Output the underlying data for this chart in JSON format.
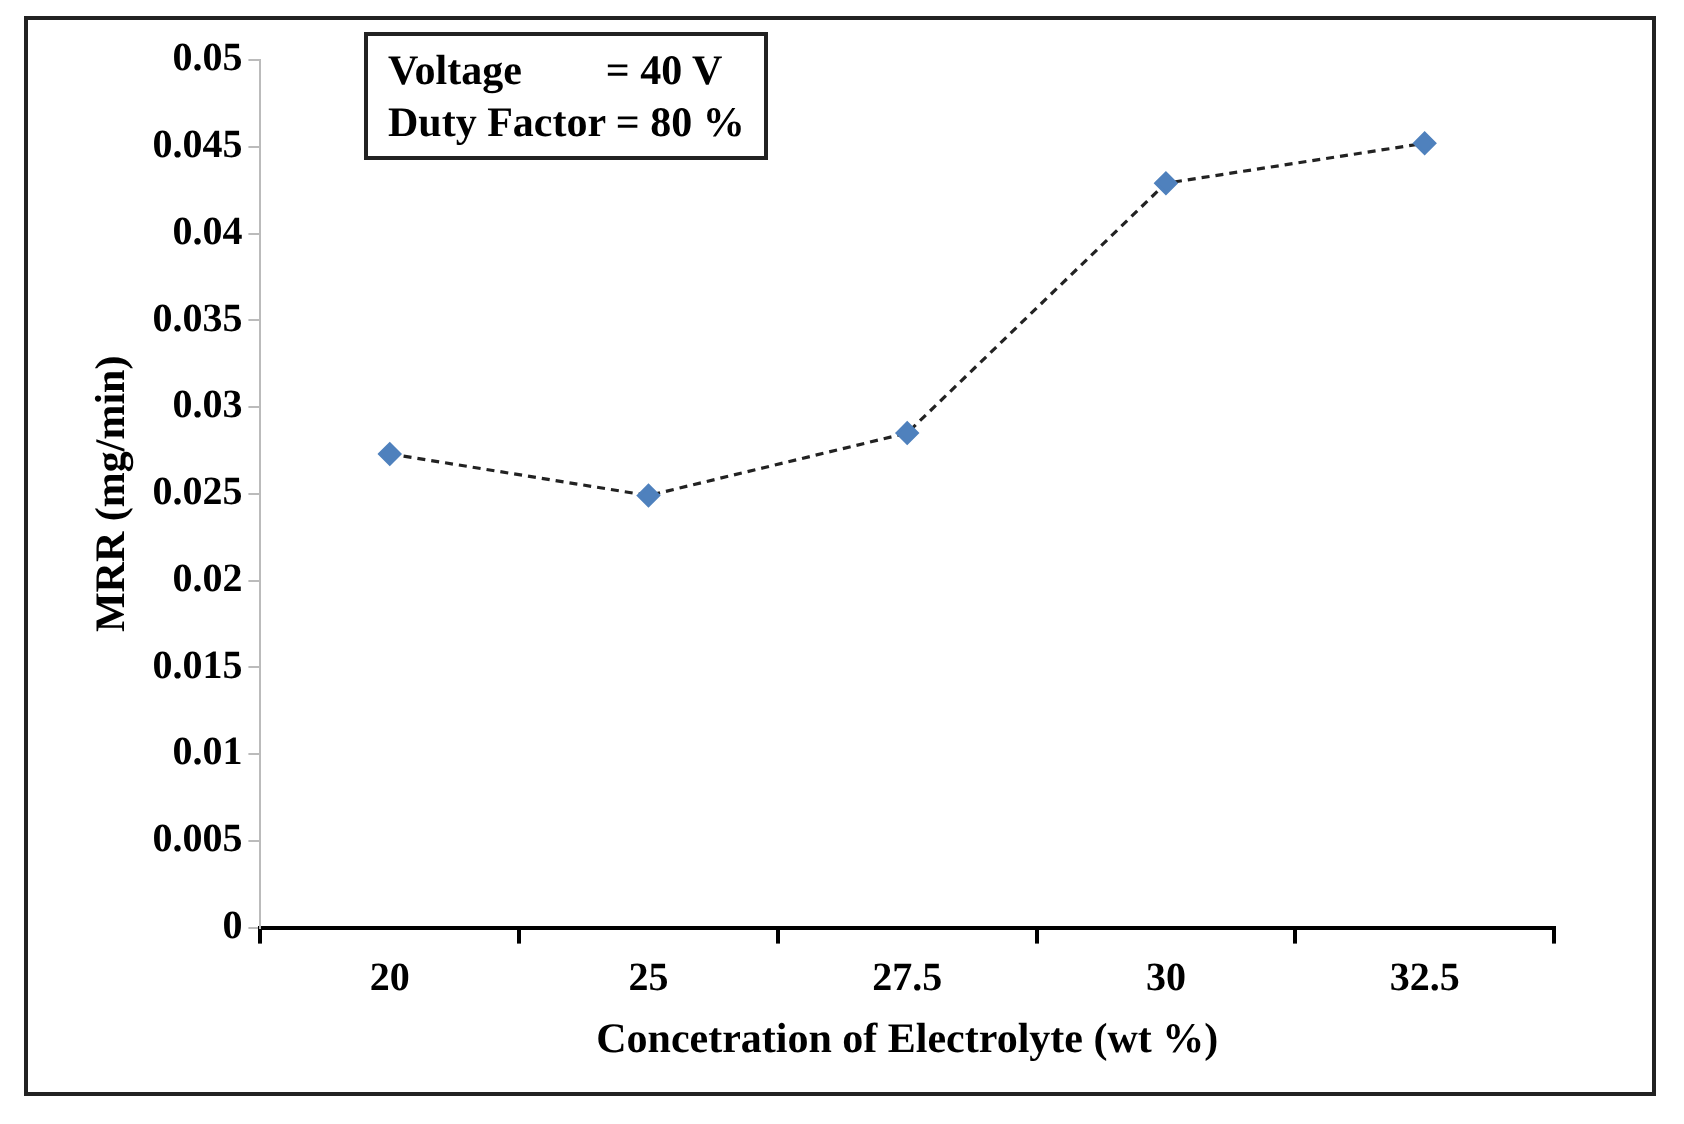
{
  "chart_data": {
    "type": "line",
    "xlabel": "Concetration of Electrolyte (wt %)",
    "ylabel": "MRR (mg/min)",
    "categories": [
      "20",
      "25",
      "27.5",
      "30",
      "32.5"
    ],
    "series": [
      {
        "color": "#4f81bd",
        "values": [
          0.0273,
          0.0249,
          0.0285,
          0.0429,
          0.0452
        ]
      }
    ],
    "ylim": [
      0,
      0.05
    ],
    "yticks": [
      0,
      0.005,
      0.01,
      0.015,
      0.02,
      0.025,
      0.03,
      0.035,
      0.04,
      0.045,
      0.05
    ],
    "grid": false,
    "legend": false,
    "marker": "diamond",
    "line_style": "dashed",
    "annotations": [
      "Voltage        = 40 V",
      "Duty Factor = 80 %"
    ]
  }
}
